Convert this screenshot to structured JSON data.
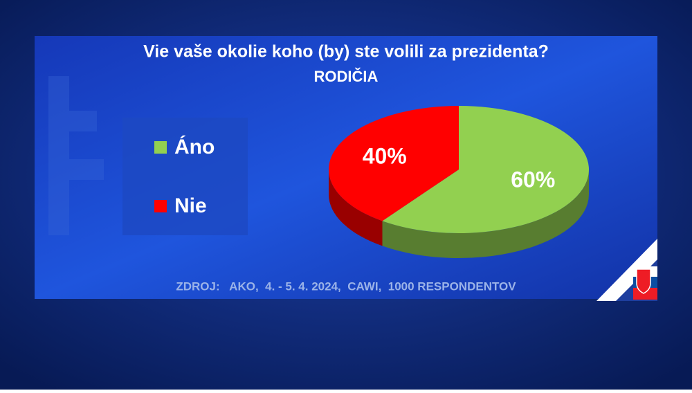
{
  "chart_data": {
    "type": "pie",
    "title": "Vie vaše okolie koho (by) ste volili za prezidenta?",
    "subtitle": "RODIČIA",
    "categories": [
      "Áno",
      "Nie"
    ],
    "values": [
      60,
      40
    ],
    "value_labels": [
      "60%",
      "40%"
    ],
    "colors": [
      "#92d050",
      "#ff0000"
    ],
    "source": "ZDROJ:   AKO,  4. - 5. 4. 2024,  CAWI,  1000 RESPONDENTOV"
  }
}
